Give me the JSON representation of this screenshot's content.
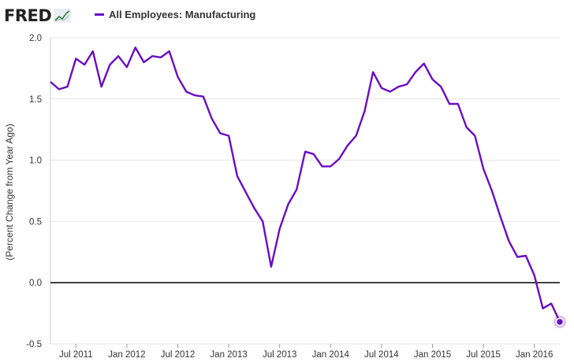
{
  "header": {
    "logo_text": "FRED",
    "logo_icon": "fred-chart-icon"
  },
  "colors": {
    "series": "#6a0dc4",
    "zero_line": "#000000",
    "grid": "#e6e6e6"
  },
  "chart_data": {
    "type": "line",
    "ylabel": "(Percent Change from Year Ago)",
    "ylim": [
      -0.5,
      2.0
    ],
    "xlim": [
      "2011-04",
      "2016-04"
    ],
    "grid": true,
    "legend_position": "top-left",
    "y_ticks": [
      "2.0",
      "1.5",
      "1.0",
      "0.5",
      "0.0",
      "-0.5"
    ],
    "y_tick_values": [
      2.0,
      1.5,
      1.0,
      0.5,
      0.0,
      -0.5
    ],
    "x_ticks": [
      {
        "label": "Jul 2011",
        "date": "2011-07"
      },
      {
        "label": "Jan 2012",
        "date": "2012-01"
      },
      {
        "label": "Jul 2012",
        "date": "2012-07"
      },
      {
        "label": "Jan 2013",
        "date": "2013-01"
      },
      {
        "label": "Jul 2013",
        "date": "2013-07"
      },
      {
        "label": "Jan 2014",
        "date": "2014-01"
      },
      {
        "label": "Jul 2014",
        "date": "2014-07"
      },
      {
        "label": "Jan 2015",
        "date": "2015-01"
      },
      {
        "label": "Jul 2015",
        "date": "2015-07"
      },
      {
        "label": "Jan 2016",
        "date": "2016-01"
      }
    ],
    "reference_line": 0.0,
    "series": [
      {
        "name": "All Employees: Manufacturing",
        "x": [
          "2011-04",
          "2011-05",
          "2011-06",
          "2011-07",
          "2011-08",
          "2011-09",
          "2011-10",
          "2011-11",
          "2011-12",
          "2012-01",
          "2012-02",
          "2012-03",
          "2012-04",
          "2012-05",
          "2012-06",
          "2012-07",
          "2012-08",
          "2012-09",
          "2012-10",
          "2012-11",
          "2012-12",
          "2013-01",
          "2013-02",
          "2013-03",
          "2013-04",
          "2013-05",
          "2013-06",
          "2013-07",
          "2013-08",
          "2013-09",
          "2013-10",
          "2013-11",
          "2013-12",
          "2014-01",
          "2014-02",
          "2014-03",
          "2014-04",
          "2014-05",
          "2014-06",
          "2014-07",
          "2014-08",
          "2014-09",
          "2014-10",
          "2014-11",
          "2014-12",
          "2015-01",
          "2015-02",
          "2015-03",
          "2015-04",
          "2015-05",
          "2015-06",
          "2015-07",
          "2015-08",
          "2015-09",
          "2015-10",
          "2015-11",
          "2015-12",
          "2016-01",
          "2016-02",
          "2016-03",
          "2016-04"
        ],
        "y": [
          1.64,
          1.58,
          1.6,
          1.83,
          1.78,
          1.89,
          1.6,
          1.78,
          1.85,
          1.76,
          1.92,
          1.8,
          1.85,
          1.84,
          1.89,
          1.68,
          1.56,
          1.53,
          1.52,
          1.34,
          1.22,
          1.2,
          0.87,
          0.74,
          0.61,
          0.5,
          0.13,
          0.44,
          0.64,
          0.76,
          1.07,
          1.05,
          0.95,
          0.95,
          1.01,
          1.12,
          1.2,
          1.4,
          1.72,
          1.59,
          1.56,
          1.6,
          1.62,
          1.72,
          1.79,
          1.66,
          1.6,
          1.46,
          1.46,
          1.27,
          1.2,
          0.93,
          0.75,
          0.54,
          0.34,
          0.21,
          0.22,
          0.06,
          -0.21,
          -0.17,
          -0.32
        ]
      }
    ]
  }
}
